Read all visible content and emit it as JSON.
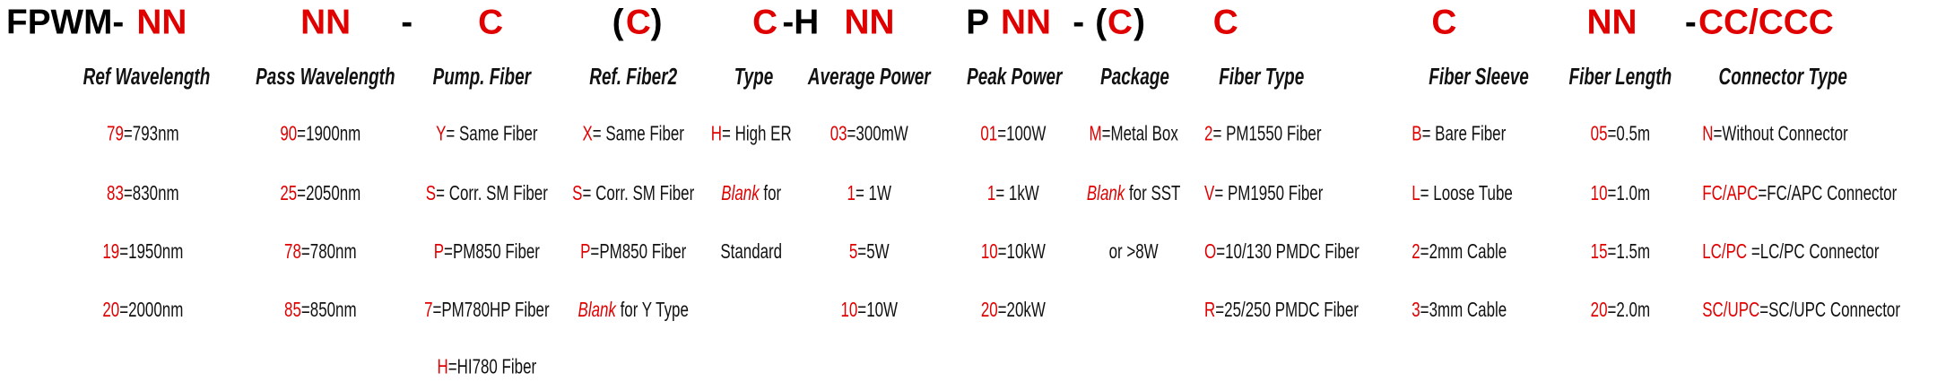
{
  "code_segments": [
    {
      "text": "FPWM-",
      "color": "#000000"
    },
    {
      "text": "NN",
      "color": "#e00000"
    },
    {
      "text": "NN",
      "color": "#e00000"
    },
    {
      "text": "-",
      "color": "#000000"
    },
    {
      "text": "C",
      "color": "#e00000"
    },
    {
      "text": "(",
      "color": "#000000"
    },
    {
      "text": "C",
      "color": "#e00000"
    },
    {
      "text": ")",
      "color": "#000000"
    },
    {
      "text": "C",
      "color": "#e00000"
    },
    {
      "text": "-H",
      "color": "#000000"
    },
    {
      "text": "NN",
      "color": "#e00000"
    },
    {
      "text": "P",
      "color": "#000000"
    },
    {
      "text": "NN",
      "color": "#e00000"
    },
    {
      "text": "-",
      "color": "#000000"
    },
    {
      "text": "(",
      "color": "#000000"
    },
    {
      "text": "C",
      "color": "#e00000"
    },
    {
      "text": ")",
      "color": "#000000"
    },
    {
      "text": "C",
      "color": "#e00000"
    },
    {
      "text": "C",
      "color": "#e00000"
    },
    {
      "text": "NN",
      "color": "#e00000"
    },
    {
      "text": "-",
      "color": "#000000"
    },
    {
      "text": "CC/CCC",
      "color": "#e00000"
    }
  ],
  "columns": [
    {
      "header": "Ref Wavelength",
      "items": [
        {
          "code": "79",
          "text": "=793nm"
        },
        {
          "code": "83",
          "text": "=830nm"
        },
        {
          "code": "19",
          "text": "=1950nm"
        },
        {
          "code": "20",
          "text": "=2000nm"
        }
      ]
    },
    {
      "header": "Pass Wavelength",
      "items": [
        {
          "code": "90",
          "text": "=1900nm"
        },
        {
          "code": "25",
          "text": "=2050nm"
        },
        {
          "code": "78",
          "text": "=780nm"
        },
        {
          "code": "85",
          "text": "=850nm"
        }
      ]
    },
    {
      "header": "Pump. Fiber",
      "items": [
        {
          "code": "Y",
          "text": "= Same Fiber"
        },
        {
          "code": "S",
          "text": "= Corr. SM Fiber"
        },
        {
          "code": "P",
          "text": "=PM850 Fiber"
        },
        {
          "code": "7",
          "text": "=PM780HP Fiber"
        },
        {
          "code": "H",
          "text": "=HI780 Fiber"
        }
      ]
    },
    {
      "header": "Ref. Fiber2",
      "items": [
        {
          "code": "X",
          "text": "= Same Fiber"
        },
        {
          "code": "S",
          "text": "= Corr. SM Fiber"
        },
        {
          "code": "P",
          "text": "=PM850 Fiber"
        },
        {
          "code": "Blank",
          "text": " for Y Type",
          "italic": true
        }
      ]
    },
    {
      "header": "Type",
      "items": [
        {
          "code": "H",
          "text": "= High ER"
        },
        {
          "code": "Blank",
          "text": " for",
          "italic": true
        },
        {
          "text": "Standard"
        }
      ]
    },
    {
      "header": "Average Power",
      "items": [
        {
          "code": "03",
          "text": "=300mW"
        },
        {
          "code": "1",
          "text": "= 1W"
        },
        {
          "code": "5",
          "text": "=5W"
        },
        {
          "code": "10",
          "text": "=10W"
        }
      ]
    },
    {
      "header": "Peak Power",
      "items": [
        {
          "code": "01",
          "text": "=100W"
        },
        {
          "code": "1",
          "text": "= 1kW"
        },
        {
          "code": "10",
          "text": "=10kW"
        },
        {
          "code": "20",
          "text": "=20kW"
        }
      ]
    },
    {
      "header": "Package",
      "items": [
        {
          "code": "M",
          "text": "=Metal Box"
        },
        {
          "code": "Blank",
          "text": " for SST",
          "italic": true
        },
        {
          "text": "or >8W"
        }
      ]
    },
    {
      "header": "Fiber Type",
      "items": [
        {
          "code": "2",
          "text": "= PM1550 Fiber"
        },
        {
          "code": "V",
          "text": "= PM1950 Fiber"
        },
        {
          "code": "O",
          "text": "=10/130 PMDC Fiber"
        },
        {
          "code": "R",
          "text": "=25/250 PMDC Fiber"
        }
      ]
    },
    {
      "header": "Fiber Sleeve",
      "items": [
        {
          "code": "B",
          "text": "= Bare Fiber"
        },
        {
          "code": "L",
          "text": "= Loose Tube"
        },
        {
          "code": "2",
          "text": "=2mm Cable"
        },
        {
          "code": "3",
          "text": "=3mm Cable"
        }
      ]
    },
    {
      "header": "Fiber Length",
      "items": [
        {
          "code": "05",
          "text": "=0.5m"
        },
        {
          "code": "10",
          "text": "=1.0m"
        },
        {
          "code": "15",
          "text": "=1.5m"
        },
        {
          "code": "20",
          "text": "=2.0m"
        }
      ]
    },
    {
      "header": "Connector Type",
      "items": [
        {
          "code": "N",
          "text": "=Without Connector"
        },
        {
          "code": "FC/APC",
          "text": "=FC/APC Connector"
        },
        {
          "code": "LC/PC",
          "text": " =LC/PC Connector"
        },
        {
          "code": "SC/UPC",
          "text": "=SC/UPC Connector"
        }
      ]
    }
  ]
}
